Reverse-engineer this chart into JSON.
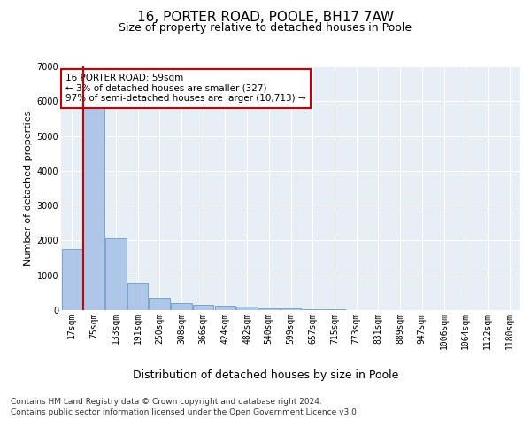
{
  "title": "16, PORTER ROAD, POOLE, BH17 7AW",
  "subtitle": "Size of property relative to detached houses in Poole",
  "xlabel": "Distribution of detached houses by size in Poole",
  "ylabel": "Number of detached properties",
  "bin_labels": [
    "17sqm",
    "75sqm",
    "133sqm",
    "191sqm",
    "250sqm",
    "308sqm",
    "366sqm",
    "424sqm",
    "482sqm",
    "540sqm",
    "599sqm",
    "657sqm",
    "715sqm",
    "773sqm",
    "831sqm",
    "889sqm",
    "947sqm",
    "1006sqm",
    "1064sqm",
    "1122sqm",
    "1180sqm"
  ],
  "bar_heights": [
    1750,
    5800,
    2050,
    800,
    350,
    200,
    145,
    130,
    95,
    50,
    50,
    25,
    20,
    0,
    0,
    0,
    0,
    0,
    0,
    0,
    0
  ],
  "bar_color": "#aec6e8",
  "bar_edge_color": "#5a8fc0",
  "highlight_color": "#cc0000",
  "ylim": [
    0,
    7000
  ],
  "yticks": [
    0,
    1000,
    2000,
    3000,
    4000,
    5000,
    6000,
    7000
  ],
  "annotation_text": "16 PORTER ROAD: 59sqm\n← 3% of detached houses are smaller (327)\n97% of semi-detached houses are larger (10,713) →",
  "annotation_box_color": "#ffffff",
  "annotation_box_edge": "#cc0000",
  "footer_line1": "Contains HM Land Registry data © Crown copyright and database right 2024.",
  "footer_line2": "Contains public sector information licensed under the Open Government Licence v3.0.",
  "plot_bg_color": "#e8eef5",
  "fig_bg_color": "#ffffff",
  "grid_color": "#ffffff",
  "title_fontsize": 11,
  "subtitle_fontsize": 9,
  "tick_fontsize": 7,
  "ylabel_fontsize": 8,
  "xlabel_fontsize": 9,
  "annotation_fontsize": 7.5,
  "footer_fontsize": 6.5
}
